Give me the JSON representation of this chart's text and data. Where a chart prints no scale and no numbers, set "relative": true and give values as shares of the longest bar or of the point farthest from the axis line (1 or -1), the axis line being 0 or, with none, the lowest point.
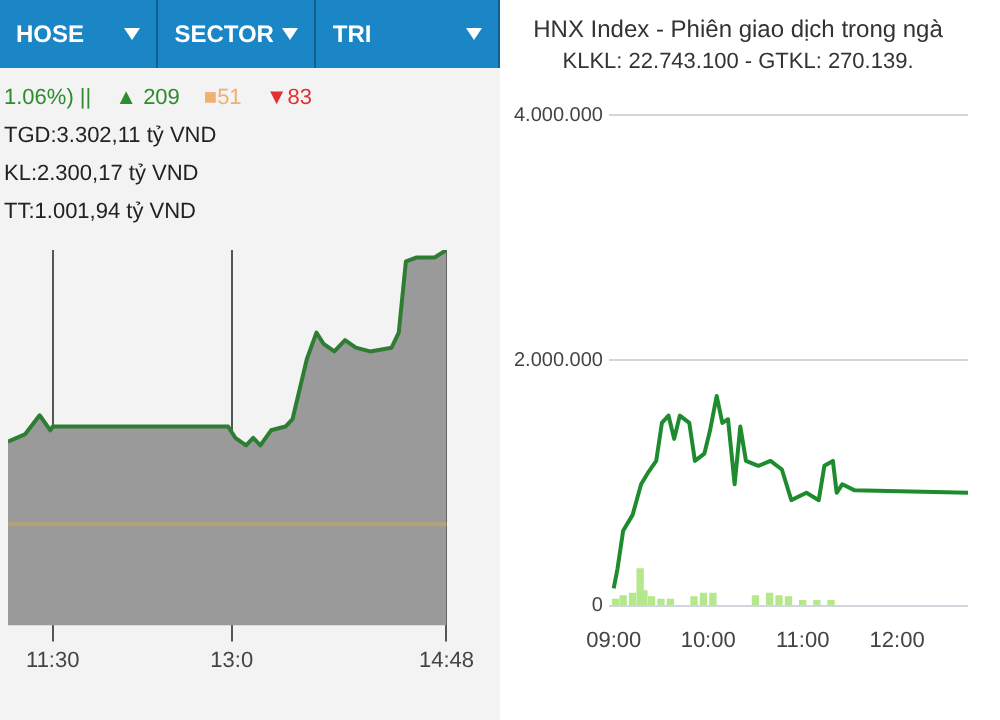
{
  "chart_data": [
    {
      "type": "area",
      "relative": true,
      "color": "#2e7d32",
      "x": [
        11.125,
        11.27,
        11.39,
        11.48,
        11.5,
        12.97,
        13.03,
        13.12,
        13.18,
        13.24,
        13.33,
        13.45,
        13.51,
        13.63,
        13.71,
        13.77,
        13.86,
        13.95,
        14.04,
        14.16,
        14.34,
        14.4,
        14.46,
        14.55,
        14.7,
        14.8
      ],
      "values": [
        0.49,
        0.51,
        0.56,
        0.52,
        0.53,
        0.53,
        0.5,
        0.48,
        0.5,
        0.48,
        0.52,
        0.53,
        0.55,
        0.71,
        0.78,
        0.75,
        0.73,
        0.76,
        0.74,
        0.73,
        0.74,
        0.78,
        0.97,
        0.98,
        0.98,
        1.0
      ],
      "xlim": [
        11.125,
        14.8
      ],
      "xticks": [
        {
          "value": 11.5,
          "label": "11:30"
        },
        {
          "value": 13,
          "label": "13:0"
        },
        {
          "value": 14.8,
          "label": "14:48"
        }
      ],
      "grid": "x",
      "tick_labels": "x",
      "ref_lines": [
        {
          "axis": "y",
          "value": 0.27,
          "color": "#b5a27a"
        }
      ],
      "annotations": [
        "HOSE",
        "SECTOR",
        "TRI",
        "1.06%) ||",
        "▲ 209",
        "■51",
        "▼83",
        "TGD:3.302,11 tỷ VND",
        "KL:2.300,17 tỷ VND",
        "TT:1.001,94 tỷ VND"
      ]
    },
    {
      "type": "line",
      "title": "HNX Index - Phiên giao dịch trong ngà",
      "subtitle": "KLKL: 22.743.100 - GTKL: 270.139.",
      "series": [
        {
          "color": "#1e8c2e",
          "x": [
            9.0,
            9.04,
            9.1,
            9.2,
            9.29,
            9.36,
            9.45,
            9.51,
            9.58,
            9.64,
            9.7,
            9.8,
            9.86,
            9.96,
            10.02,
            10.09,
            10.15,
            10.21,
            10.28,
            10.34,
            10.4,
            10.53,
            10.66,
            10.78,
            10.88,
            11.04,
            11.17,
            11.23,
            11.32,
            11.36,
            11.42,
            11.55,
            12.75
          ],
          "values": [
            140000,
            300000,
            610000,
            740000,
            990000,
            1080000,
            1180000,
            1490000,
            1550000,
            1360000,
            1550000,
            1490000,
            1180000,
            1240000,
            1430000,
            1710000,
            1490000,
            1520000,
            990000,
            1460000,
            1180000,
            1140000,
            1180000,
            1110000,
            860000,
            920000,
            860000,
            1140000,
            1180000,
            920000,
            990000,
            940000,
            920000
          ]
        },
        {
          "type": "bar",
          "color": "#b5e88a",
          "x": [
            9.02,
            9.1,
            9.2,
            9.28,
            9.32,
            9.4,
            9.5,
            9.6,
            9.85,
            9.95,
            10.05,
            10.5,
            10.65,
            10.75,
            10.85,
            11.0,
            11.15,
            11.3
          ],
          "values": [
            50000,
            80000,
            100000,
            300000,
            120000,
            70000,
            50000,
            50000,
            70000,
            100000,
            100000,
            80000,
            100000,
            80000,
            70000,
            40000,
            40000,
            40000
          ]
        }
      ],
      "xlim": [
        8.95,
        12.75
      ],
      "xticks": [
        {
          "value": 9,
          "label": "09:00"
        },
        {
          "value": 10,
          "label": "10:00"
        },
        {
          "value": 11,
          "label": "11:00"
        },
        {
          "value": 12,
          "label": "12:00"
        }
      ],
      "ylim": [
        0,
        4000000
      ],
      "yticks": [
        {
          "value": 0,
          "label": "0"
        },
        {
          "value": 2000000,
          "label": "2.000.000"
        },
        {
          "value": 4000000,
          "label": "4.000.000"
        }
      ],
      "grid": "y",
      "legend": false
    }
  ]
}
